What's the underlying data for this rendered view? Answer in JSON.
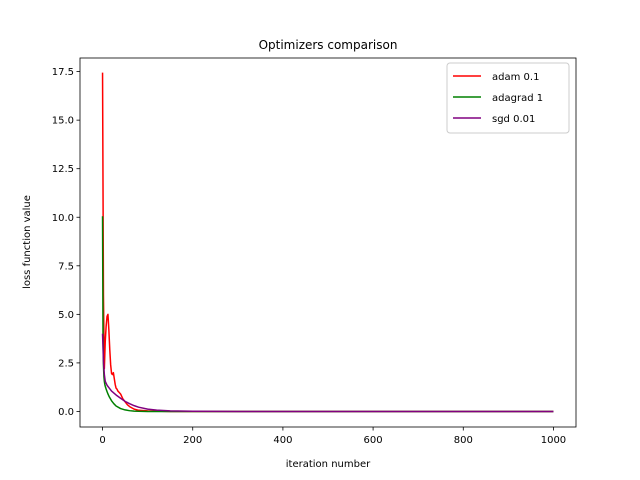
{
  "chart_data": {
    "type": "line",
    "title": "Optimizers comparison",
    "xlabel": "iteration number",
    "ylabel": "loss function value",
    "xlim": [
      -50,
      1050
    ],
    "ylim": [
      -0.8,
      18.2
    ],
    "xticks": [
      0,
      200,
      400,
      600,
      800,
      1000
    ],
    "xtick_labels": [
      "0",
      "200",
      "400",
      "600",
      "800",
      "1000"
    ],
    "yticks": [
      0.0,
      2.5,
      5.0,
      7.5,
      10.0,
      12.5,
      15.0,
      17.5
    ],
    "ytick_labels": [
      "0.0",
      "2.5",
      "5.0",
      "7.5",
      "10.0",
      "12.5",
      "15.0",
      "17.5"
    ],
    "grid": false,
    "legend_position": "top-right",
    "series": [
      {
        "name": "adam 0.1",
        "color": "#ff0000",
        "x": [
          0,
          2,
          4,
          6,
          8,
          10,
          12,
          14,
          16,
          18,
          20,
          22,
          24,
          26,
          28,
          30,
          32,
          34,
          36,
          40,
          45,
          50,
          55,
          60,
          70,
          80,
          100,
          150,
          200,
          300,
          500,
          1000
        ],
        "y": [
          17.45,
          6.0,
          2.2,
          3.6,
          4.4,
          4.9,
          5.0,
          4.2,
          3.2,
          2.4,
          1.95,
          1.9,
          2.0,
          1.7,
          1.4,
          1.2,
          1.15,
          1.05,
          1.0,
          0.9,
          0.65,
          0.5,
          0.35,
          0.25,
          0.12,
          0.06,
          0.03,
          0.0,
          0.0,
          0.0,
          0.0,
          0.0
        ]
      },
      {
        "name": "adagrad 1",
        "color": "#008000",
        "x": [
          0,
          1,
          2,
          3,
          4,
          5,
          6,
          8,
          10,
          12,
          15,
          20,
          25,
          30,
          40,
          50,
          60,
          70,
          80,
          100,
          150,
          200,
          400,
          1000
        ],
        "y": [
          10.05,
          4.0,
          2.4,
          1.8,
          1.55,
          1.4,
          1.3,
          1.15,
          1.02,
          0.9,
          0.75,
          0.55,
          0.4,
          0.28,
          0.15,
          0.08,
          0.04,
          0.02,
          0.01,
          0.0,
          0.0,
          0.0,
          0.0,
          0.0
        ]
      },
      {
        "name": "sgd 0.01",
        "color": "#800080",
        "x": [
          0,
          2,
          4,
          6,
          8,
          10,
          15,
          20,
          30,
          40,
          50,
          60,
          70,
          80,
          100,
          120,
          150,
          200,
          300,
          1000
        ],
        "y": [
          4.0,
          2.6,
          1.9,
          1.55,
          1.45,
          1.35,
          1.2,
          1.05,
          0.85,
          0.68,
          0.52,
          0.4,
          0.3,
          0.22,
          0.12,
          0.07,
          0.03,
          0.01,
          0.0,
          0.0
        ]
      }
    ]
  }
}
